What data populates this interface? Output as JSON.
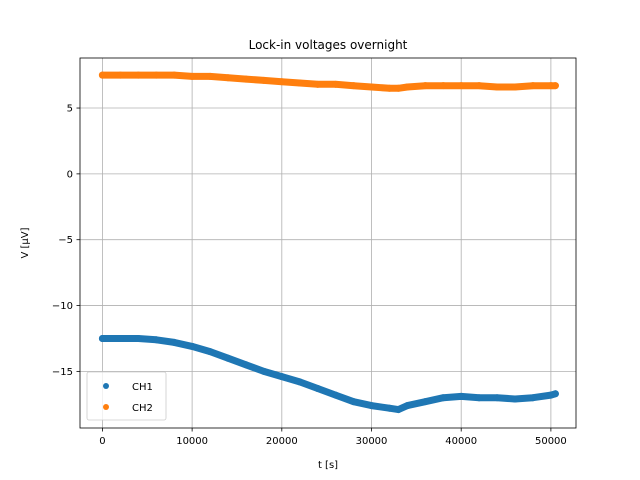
{
  "chart_data": {
    "type": "scatter",
    "title": "Lock-in voltages overnight",
    "xlabel": "t [s]",
    "ylabel": "V [μV]",
    "xlim": [
      -2500,
      52800
    ],
    "ylim": [
      -19.3,
      8.8
    ],
    "xticks": [
      0,
      10000,
      20000,
      30000,
      40000,
      50000
    ],
    "yticks": [
      -15,
      -10,
      -5,
      0,
      5
    ],
    "ytick_labels": [
      "−15",
      "−10",
      "−5",
      "0",
      "5"
    ],
    "grid": true,
    "legend_position": "lower-left",
    "series": [
      {
        "name": "CH1",
        "color": "#1f77b4",
        "x": [
          0,
          2000,
          4000,
          6000,
          8000,
          10000,
          12000,
          14000,
          16000,
          18000,
          20000,
          22000,
          24000,
          26000,
          28000,
          30000,
          32000,
          33000,
          34000,
          36000,
          38000,
          40000,
          42000,
          44000,
          46000,
          48000,
          50000,
          50500
        ],
        "y": [
          -12.5,
          -12.5,
          -12.5,
          -12.6,
          -12.8,
          -13.1,
          -13.5,
          -14.0,
          -14.5,
          -15.0,
          -15.4,
          -15.8,
          -16.3,
          -16.8,
          -17.3,
          -17.6,
          -17.8,
          -17.9,
          -17.6,
          -17.3,
          -17.0,
          -16.9,
          -17.0,
          -17.0,
          -17.1,
          -17.0,
          -16.8,
          -16.7
        ]
      },
      {
        "name": "CH2",
        "color": "#ff7f0e",
        "x": [
          0,
          2000,
          4000,
          6000,
          8000,
          10000,
          12000,
          14000,
          16000,
          18000,
          20000,
          22000,
          24000,
          26000,
          28000,
          30000,
          32000,
          33000,
          34000,
          36000,
          38000,
          40000,
          42000,
          44000,
          46000,
          48000,
          50000,
          50500
        ],
        "y": [
          7.5,
          7.5,
          7.5,
          7.5,
          7.5,
          7.4,
          7.4,
          7.3,
          7.2,
          7.1,
          7.0,
          6.9,
          6.8,
          6.8,
          6.7,
          6.6,
          6.5,
          6.5,
          6.6,
          6.7,
          6.7,
          6.7,
          6.7,
          6.6,
          6.6,
          6.7,
          6.7,
          6.7
        ]
      }
    ]
  }
}
